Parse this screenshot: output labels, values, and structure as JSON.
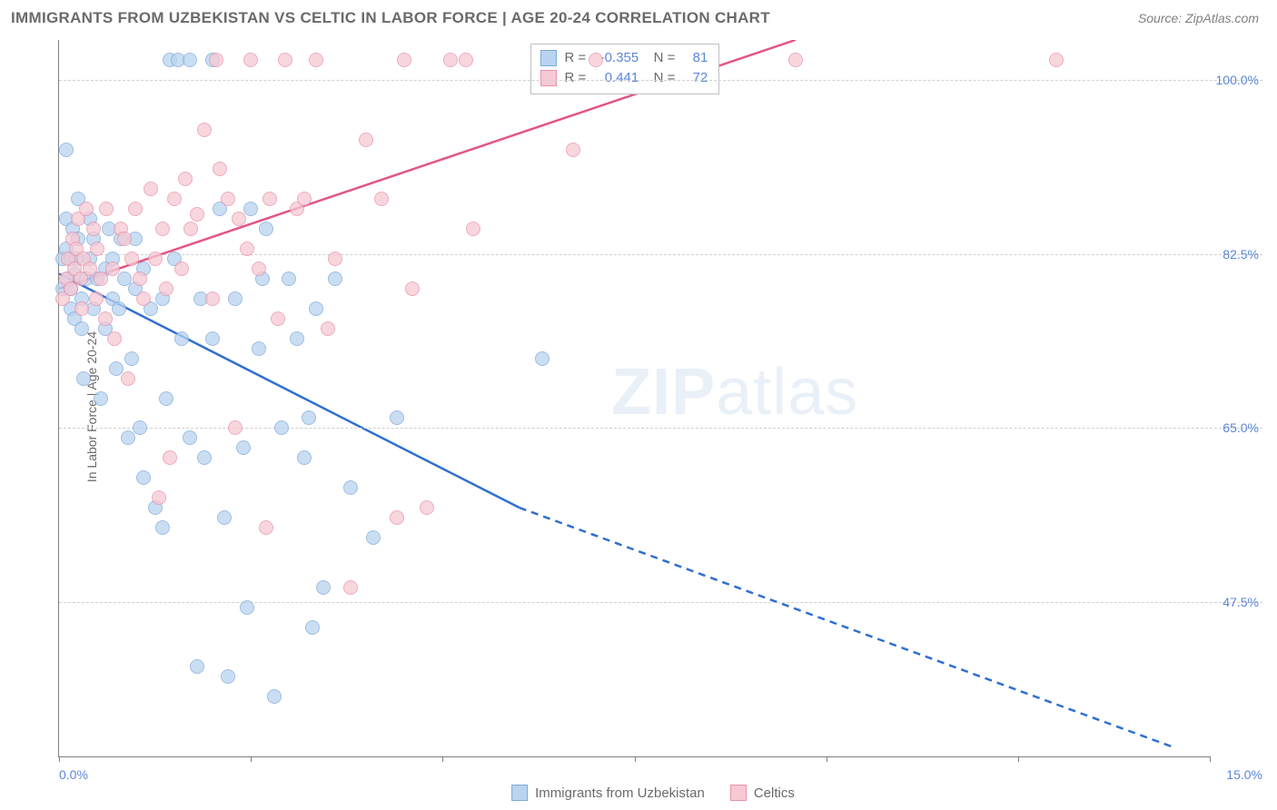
{
  "header": {
    "title": "IMMIGRANTS FROM UZBEKISTAN VS CELTIC IN LABOR FORCE | AGE 20-24 CORRELATION CHART",
    "source": "Source: ZipAtlas.com"
  },
  "watermark": {
    "bold": "ZIP",
    "rest": "atlas"
  },
  "chart": {
    "type": "scatter",
    "ylabel": "In Labor Force | Age 20-24",
    "xlim": [
      0.0,
      15.0
    ],
    "ylim": [
      32.0,
      104.0
    ],
    "ytick_values": [
      47.5,
      65.0,
      82.5,
      100.0
    ],
    "ytick_labels": [
      "47.5%",
      "65.0%",
      "82.5%",
      "100.0%"
    ],
    "xtick_values": [
      0.0,
      2.5,
      5.0,
      7.5,
      10.0,
      12.5,
      15.0
    ],
    "xtick_labels_visible": {
      "first": "0.0%",
      "last": "15.0%"
    },
    "grid_color": "#cfcfcf",
    "axis_color": "#808080",
    "series": [
      {
        "name": "Immigrants from Uzbekistan",
        "fill": "#b9d4f0",
        "stroke": "#7fa9d8",
        "line_color": "#2f6fd1",
        "R": "-0.355",
        "N": "81",
        "trend": {
          "x1": 0.0,
          "y1": 80.5,
          "x2_solid": 6.0,
          "y2_solid": 57.0,
          "x2_dash": 14.5,
          "y2_dash": 33.0
        },
        "points": [
          [
            0.05,
            79
          ],
          [
            0.05,
            82
          ],
          [
            0.1,
            83
          ],
          [
            0.1,
            86
          ],
          [
            0.1,
            93
          ],
          [
            0.12,
            80
          ],
          [
            0.15,
            77
          ],
          [
            0.15,
            79
          ],
          [
            0.15,
            82
          ],
          [
            0.18,
            85
          ],
          [
            0.2,
            80.5
          ],
          [
            0.2,
            76
          ],
          [
            0.22,
            82
          ],
          [
            0.25,
            88
          ],
          [
            0.25,
            84
          ],
          [
            0.3,
            78
          ],
          [
            0.3,
            75
          ],
          [
            0.32,
            70
          ],
          [
            0.35,
            80
          ],
          [
            0.4,
            82
          ],
          [
            0.4,
            86
          ],
          [
            0.45,
            84
          ],
          [
            0.45,
            77
          ],
          [
            0.5,
            80
          ],
          [
            0.55,
            68
          ],
          [
            0.6,
            81
          ],
          [
            0.6,
            75
          ],
          [
            0.65,
            85
          ],
          [
            0.7,
            78
          ],
          [
            0.7,
            82
          ],
          [
            0.75,
            71
          ],
          [
            0.78,
            77
          ],
          [
            0.8,
            84
          ],
          [
            0.85,
            80
          ],
          [
            0.9,
            64
          ],
          [
            0.95,
            72
          ],
          [
            1.0,
            79
          ],
          [
            1.0,
            84
          ],
          [
            1.05,
            65
          ],
          [
            1.1,
            81
          ],
          [
            1.1,
            60
          ],
          [
            1.2,
            77
          ],
          [
            1.25,
            57
          ],
          [
            1.35,
            55
          ],
          [
            1.35,
            78
          ],
          [
            1.4,
            68
          ],
          [
            1.45,
            102
          ],
          [
            1.5,
            82
          ],
          [
            1.55,
            102
          ],
          [
            1.6,
            74
          ],
          [
            1.7,
            102
          ],
          [
            1.7,
            64
          ],
          [
            1.8,
            41
          ],
          [
            1.85,
            78
          ],
          [
            1.9,
            62
          ],
          [
            2.0,
            102
          ],
          [
            2.0,
            74
          ],
          [
            2.1,
            87
          ],
          [
            2.15,
            56
          ],
          [
            2.2,
            40
          ],
          [
            2.3,
            78
          ],
          [
            2.4,
            63
          ],
          [
            2.45,
            47
          ],
          [
            2.5,
            87
          ],
          [
            2.6,
            73
          ],
          [
            2.65,
            80
          ],
          [
            2.7,
            85
          ],
          [
            2.8,
            38
          ],
          [
            2.9,
            65
          ],
          [
            3.0,
            80
          ],
          [
            3.1,
            74
          ],
          [
            3.2,
            62
          ],
          [
            3.25,
            66
          ],
          [
            3.3,
            45
          ],
          [
            3.35,
            77
          ],
          [
            3.45,
            49
          ],
          [
            3.6,
            80
          ],
          [
            3.8,
            59
          ],
          [
            4.1,
            54
          ],
          [
            4.4,
            66
          ],
          [
            6.3,
            72
          ]
        ]
      },
      {
        "name": "Celtics",
        "fill": "#f6c9d4",
        "stroke": "#e991aa",
        "line_color": "#e25584",
        "R": "0.441",
        "N": "72",
        "trend": {
          "x1": 0.0,
          "y1": 79.0,
          "x2_solid": 9.6,
          "y2_solid": 104.0,
          "x2_dash": 9.6,
          "y2_dash": 104.0
        },
        "points": [
          [
            0.05,
            78
          ],
          [
            0.1,
            80
          ],
          [
            0.12,
            82
          ],
          [
            0.15,
            79
          ],
          [
            0.18,
            84
          ],
          [
            0.2,
            81
          ],
          [
            0.22,
            83
          ],
          [
            0.25,
            86
          ],
          [
            0.28,
            80
          ],
          [
            0.3,
            77
          ],
          [
            0.32,
            82
          ],
          [
            0.35,
            87
          ],
          [
            0.4,
            81
          ],
          [
            0.45,
            85
          ],
          [
            0.48,
            78
          ],
          [
            0.5,
            83
          ],
          [
            0.55,
            80
          ],
          [
            0.6,
            76
          ],
          [
            0.62,
            87
          ],
          [
            0.7,
            81
          ],
          [
            0.72,
            74
          ],
          [
            0.8,
            85
          ],
          [
            0.85,
            84
          ],
          [
            0.9,
            70
          ],
          [
            0.95,
            82
          ],
          [
            1.0,
            87
          ],
          [
            1.05,
            80
          ],
          [
            1.1,
            78
          ],
          [
            1.2,
            89
          ],
          [
            1.25,
            82
          ],
          [
            1.3,
            58
          ],
          [
            1.35,
            85
          ],
          [
            1.4,
            79
          ],
          [
            1.45,
            62
          ],
          [
            1.5,
            88
          ],
          [
            1.6,
            81
          ],
          [
            1.65,
            90
          ],
          [
            1.72,
            85
          ],
          [
            1.8,
            86.5
          ],
          [
            1.9,
            95
          ],
          [
            2.0,
            78
          ],
          [
            2.05,
            102
          ],
          [
            2.1,
            91
          ],
          [
            2.2,
            88
          ],
          [
            2.3,
            65
          ],
          [
            2.35,
            86
          ],
          [
            2.45,
            83
          ],
          [
            2.5,
            102
          ],
          [
            2.6,
            81
          ],
          [
            2.7,
            55
          ],
          [
            2.75,
            88
          ],
          [
            2.85,
            76
          ],
          [
            2.95,
            102
          ],
          [
            3.1,
            87
          ],
          [
            3.2,
            88
          ],
          [
            3.35,
            102
          ],
          [
            3.5,
            75
          ],
          [
            3.6,
            82
          ],
          [
            3.8,
            49
          ],
          [
            4.0,
            94
          ],
          [
            4.2,
            88
          ],
          [
            4.4,
            56
          ],
          [
            4.5,
            102
          ],
          [
            4.6,
            79
          ],
          [
            4.8,
            57
          ],
          [
            5.1,
            102
          ],
          [
            5.3,
            102
          ],
          [
            5.4,
            85
          ],
          [
            6.7,
            93
          ],
          [
            7.0,
            102
          ],
          [
            9.6,
            102
          ],
          [
            13.0,
            102
          ]
        ]
      }
    ],
    "legend_bottom": [
      {
        "label": "Immigrants from Uzbekistan",
        "fill": "#b9d4f0",
        "stroke": "#7fa9d8"
      },
      {
        "label": "Celtics",
        "fill": "#f6c9d4",
        "stroke": "#e991aa"
      }
    ]
  }
}
